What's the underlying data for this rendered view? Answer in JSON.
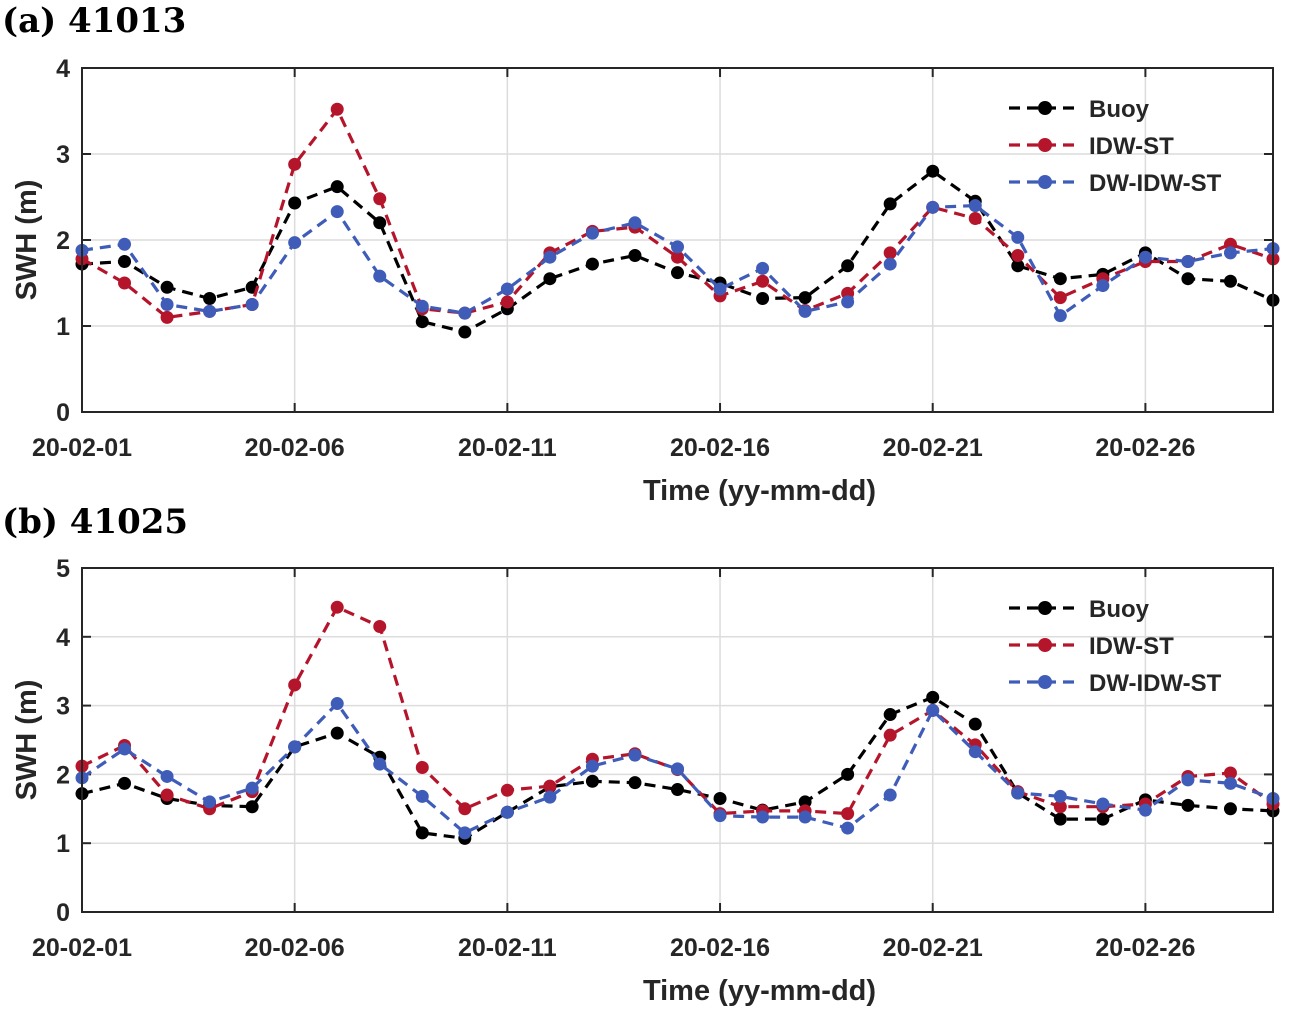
{
  "chart_data": [
    {
      "type": "line",
      "title": "(a) 41013",
      "xlabel": "Time (yy-mm-dd)",
      "ylabel": "SWH (m)",
      "ylim": [
        0,
        4
      ],
      "yticks": [
        "0",
        "1",
        "2",
        "3",
        "4"
      ],
      "xlim": [
        1,
        29
      ],
      "xticks": [
        {
          "day": 1,
          "label": "20-02-01"
        },
        {
          "day": 6,
          "label": "20-02-06"
        },
        {
          "day": 11,
          "label": "20-02-11"
        },
        {
          "day": 16,
          "label": "20-02-16"
        },
        {
          "day": 21,
          "label": "20-02-21"
        },
        {
          "day": 26,
          "label": "20-02-26"
        }
      ],
      "grid": true,
      "legend_position": "top-right",
      "x": [
        1,
        2,
        3,
        4,
        5,
        6,
        7,
        8,
        9,
        10,
        11,
        12,
        13,
        14,
        15,
        16,
        17,
        18,
        19,
        20,
        21,
        22,
        23,
        24,
        25,
        26,
        27,
        28,
        29
      ],
      "series": [
        {
          "name": "Buoy",
          "color": "#000000",
          "values": [
            1.72,
            1.75,
            1.45,
            1.32,
            1.45,
            2.43,
            2.62,
            2.2,
            1.05,
            0.93,
            1.2,
            1.55,
            1.72,
            1.82,
            1.62,
            1.5,
            1.32,
            1.33,
            1.7,
            2.42,
            2.8,
            2.45,
            1.7,
            1.55,
            1.6,
            1.85,
            1.55,
            1.52,
            1.3
          ]
        },
        {
          "name": "IDW-ST",
          "color": "#b5152b",
          "values": [
            1.78,
            1.5,
            1.1,
            1.17,
            1.25,
            2.88,
            3.52,
            2.48,
            1.2,
            1.15,
            1.28,
            1.85,
            2.1,
            2.15,
            1.8,
            1.35,
            1.52,
            1.18,
            1.38,
            1.85,
            2.38,
            2.25,
            1.82,
            1.33,
            1.55,
            1.75,
            1.75,
            1.95,
            1.78
          ]
        },
        {
          "name": "DW-IDW-ST",
          "color": "#3f5db8",
          "values": [
            1.88,
            1.95,
            1.25,
            1.17,
            1.25,
            1.97,
            2.33,
            1.58,
            1.23,
            1.15,
            1.43,
            1.8,
            2.08,
            2.2,
            1.92,
            1.43,
            1.67,
            1.17,
            1.28,
            1.72,
            2.38,
            2.4,
            2.03,
            1.12,
            1.47,
            1.8,
            1.75,
            1.85,
            1.9
          ]
        }
      ]
    },
    {
      "type": "line",
      "title": "(b) 41025",
      "xlabel": "Time (yy-mm-dd)",
      "ylabel": "SWH (m)",
      "ylim": [
        0,
        5
      ],
      "yticks": [
        "0",
        "1",
        "2",
        "3",
        "4",
        "5"
      ],
      "xlim": [
        1,
        29
      ],
      "xticks": [
        {
          "day": 1,
          "label": "20-02-01"
        },
        {
          "day": 6,
          "label": "20-02-06"
        },
        {
          "day": 11,
          "label": "20-02-11"
        },
        {
          "day": 16,
          "label": "20-02-16"
        },
        {
          "day": 21,
          "label": "20-02-21"
        },
        {
          "day": 26,
          "label": "20-02-26"
        }
      ],
      "grid": true,
      "legend_position": "top-right",
      "x": [
        1,
        2,
        3,
        4,
        5,
        6,
        7,
        8,
        9,
        10,
        11,
        12,
        13,
        14,
        15,
        16,
        17,
        18,
        19,
        20,
        21,
        22,
        23,
        24,
        25,
        26,
        27,
        28,
        29
      ],
      "series": [
        {
          "name": "Buoy",
          "color": "#000000",
          "values": [
            1.72,
            1.87,
            1.65,
            1.55,
            1.53,
            2.4,
            2.6,
            2.25,
            1.15,
            1.07,
            1.45,
            1.82,
            1.9,
            1.88,
            1.78,
            1.65,
            1.48,
            1.6,
            2.0,
            2.87,
            3.12,
            2.73,
            1.73,
            1.35,
            1.35,
            1.63,
            1.55,
            1.5,
            1.47
          ]
        },
        {
          "name": "IDW-ST",
          "color": "#b5152b",
          "values": [
            2.12,
            2.42,
            1.7,
            1.5,
            1.75,
            3.3,
            4.43,
            4.15,
            2.1,
            1.5,
            1.77,
            1.83,
            2.22,
            2.3,
            2.07,
            1.43,
            1.47,
            1.47,
            1.43,
            2.57,
            2.93,
            2.43,
            1.75,
            1.53,
            1.53,
            1.57,
            1.97,
            2.02,
            1.57
          ]
        },
        {
          "name": "DW-IDW-ST",
          "color": "#3f5db8",
          "values": [
            1.95,
            2.37,
            1.97,
            1.6,
            1.8,
            2.4,
            3.03,
            2.15,
            1.68,
            1.15,
            1.45,
            1.67,
            2.12,
            2.28,
            2.08,
            1.4,
            1.38,
            1.38,
            1.22,
            1.7,
            2.93,
            2.33,
            1.73,
            1.68,
            1.57,
            1.48,
            1.92,
            1.87,
            1.65
          ]
        }
      ]
    }
  ]
}
